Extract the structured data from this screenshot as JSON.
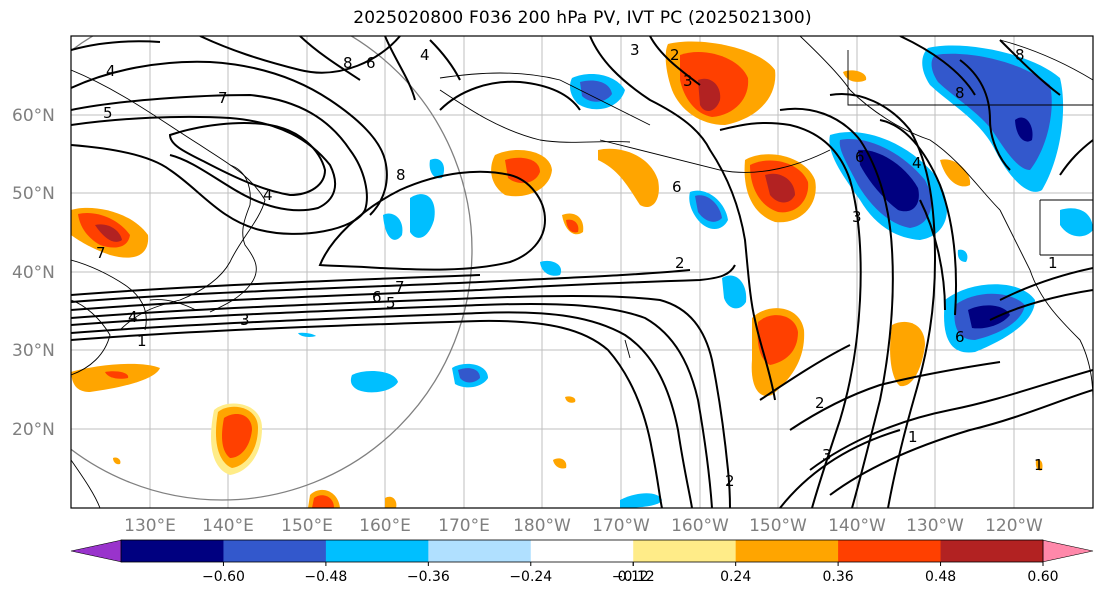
{
  "title": "2025020800 F036 200 hPa PV, IVT PC (2025021300)",
  "lon_labels": [
    "130°E",
    "140°E",
    "150°E",
    "160°E",
    "170°E",
    "180°W",
    "170°W",
    "160°W",
    "150°W",
    "140°W",
    "130°W",
    "120°W"
  ],
  "lat_labels": [
    "60°N",
    "50°N",
    "40°N",
    "30°N",
    "20°N"
  ],
  "colorbar": {
    "colors": [
      "#9933cc",
      "#000080",
      "#3358cc",
      "#00bfff",
      "#b0e0ff",
      "#ffffff",
      "#ffec88",
      "#ffa500",
      "#ff4000",
      "#b22222",
      "#ff88aa"
    ],
    "tick_labels": [
      "−0.60",
      "−0.48",
      "−0.36",
      "−0.24",
      "−0.12",
      "0.12",
      "0.24",
      "0.36",
      "0.48",
      "0.60"
    ]
  },
  "contour_labels": [
    "5",
    "4",
    "7",
    "8",
    "6",
    "4",
    "3",
    "3",
    "2",
    "8",
    "6",
    "7",
    "6",
    "5",
    "4",
    "3",
    "1",
    "4",
    "1",
    "2",
    "2",
    "2",
    "3",
    "1",
    "6",
    "6",
    "4",
    "1",
    "3",
    "8",
    "8",
    "7"
  ],
  "colors": {
    "gridline": "#bfbfbf",
    "contour": "#000000",
    "circle": "#808080"
  }
}
